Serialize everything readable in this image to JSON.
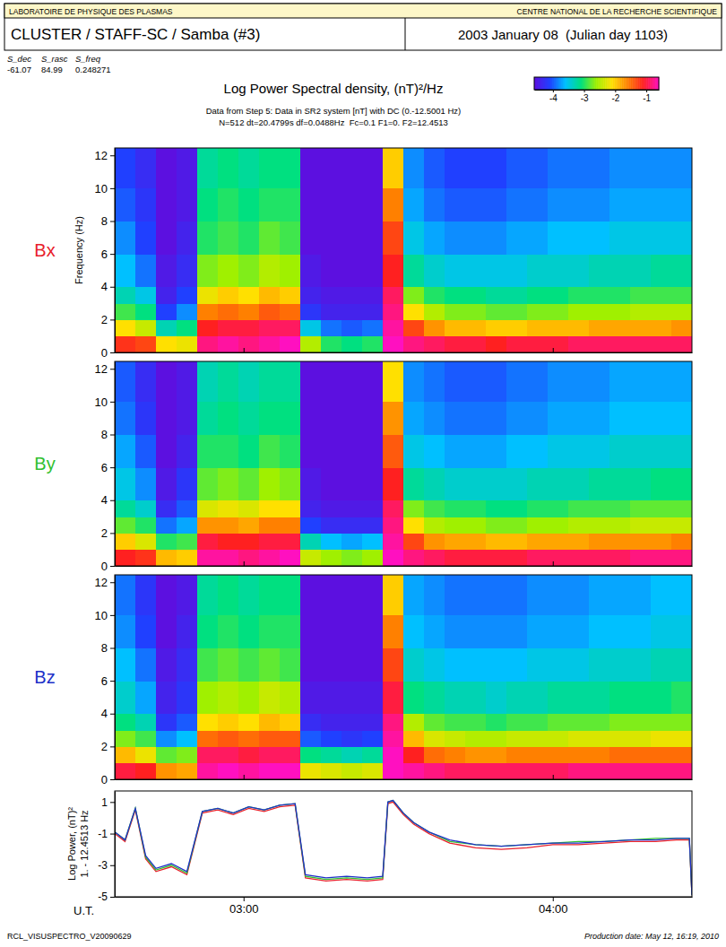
{
  "header": {
    "lab": "LABORATOIRE DE PHYSIQUE DES PLASMAS",
    "org": "CENTRE NATIONAL DE LA RECHERCHE SCIENTIFIQUE",
    "mission": "CLUSTER / STAFF-SC / Samba (#3)",
    "date": "2003 January 08  (Julian day 1103)",
    "params_names": [
      "S_dec",
      "S_rasc",
      "S_freq"
    ],
    "params_values": [
      -61.07,
      84.99,
      0.248271
    ],
    "title": "Log Power Spectral density, (nT)²/Hz",
    "subtitle": [
      "Data from Step 5: Data in SR2 system [nT] with DC (0.-12.5001 Hz)",
      "N=512 dt=20.4799s df=0.0488Hz  Fc=0.1 F1=0. F2=12.4513"
    ],
    "colorbar": {
      "range": [
        -4.6,
        -0.6
      ],
      "ticks": [
        -4,
        -3,
        -2,
        -1
      ]
    },
    "footer_left": "RCL_VISUSPECTRO_V20090629",
    "footer_right": "Production date: May 12, 16:19, 2010"
  },
  "chart_data": [
    {
      "type": "heatmap",
      "label": "Bx",
      "color": "#e8202a",
      "ylabel": "Frequency (Hz)",
      "xlim": [
        155,
        267
      ],
      "ylim": [
        0,
        12.4513
      ],
      "xticks": [
        180,
        240
      ],
      "yticks": [
        0,
        2,
        4,
        6,
        8,
        10,
        12
      ],
      "tick_labels": "y",
      "x_edges": [
        155,
        159,
        163,
        167,
        171,
        175,
        179,
        183,
        187,
        191,
        195,
        199,
        203,
        207,
        211,
        215,
        219,
        223,
        227,
        231,
        235,
        239,
        243,
        247,
        251,
        255,
        259,
        263,
        267
      ],
      "y_edges": [
        0,
        1,
        2,
        3,
        4,
        6,
        8,
        10,
        12.4513
      ],
      "cells": [
        [
          -1.2,
          -2.1,
          -2.9,
          -3.3,
          -3.6,
          -3.8,
          -4.0,
          -4.1
        ],
        [
          -1.3,
          -2.4,
          -3.1,
          -3.5,
          -3.9,
          -4.1,
          -4.2,
          -4.3
        ],
        [
          -2.1,
          -3.3,
          -4.1,
          -4.4,
          -4.5,
          -4.6,
          -4.6,
          -4.6
        ],
        [
          -2.2,
          -3.1,
          -3.8,
          -4.1,
          -4.3,
          -4.4,
          -4.5,
          -4.5
        ],
        [
          -0.8,
          -1.1,
          -1.6,
          -2.2,
          -2.7,
          -3.0,
          -3.1,
          -3.2
        ],
        [
          -0.7,
          -1.0,
          -1.5,
          -2.0,
          -2.6,
          -2.9,
          -3.0,
          -3.1
        ],
        [
          -0.8,
          -1.0,
          -1.6,
          -2.1,
          -2.7,
          -3.0,
          -3.1,
          -3.2
        ],
        [
          -0.7,
          -0.9,
          -1.4,
          -1.9,
          -2.5,
          -2.8,
          -3.0,
          -3.1
        ],
        [
          -0.6,
          -0.9,
          -1.5,
          -2.0,
          -2.6,
          -2.9,
          -3.0,
          -3.1
        ],
        [
          -2.5,
          -3.5,
          -4.2,
          -4.4,
          -4.5,
          -4.6,
          -4.6,
          -4.6
        ],
        [
          -3.0,
          -3.9,
          -4.4,
          -4.5,
          -4.6,
          -4.6,
          -4.6,
          -4.6
        ],
        [
          -3.1,
          -4.0,
          -4.4,
          -4.5,
          -4.6,
          -4.6,
          -4.6,
          -4.6
        ],
        [
          -3.0,
          -3.9,
          -4.4,
          -4.5,
          -4.6,
          -4.6,
          -4.6,
          -4.6
        ],
        [
          -0.6,
          -0.7,
          -0.8,
          -0.9,
          -1.1,
          -1.3,
          -1.6,
          -2.0
        ],
        [
          -0.8,
          -1.3,
          -2.1,
          -2.7,
          -3.2,
          -3.5,
          -3.7,
          -3.8
        ],
        [
          -0.9,
          -1.7,
          -2.5,
          -3.0,
          -3.4,
          -3.7,
          -3.9,
          -4.0
        ],
        [
          -1.0,
          -1.9,
          -2.7,
          -3.1,
          -3.5,
          -3.8,
          -4.0,
          -4.1
        ],
        [
          -1.0,
          -1.9,
          -2.7,
          -3.1,
          -3.5,
          -3.8,
          -4.0,
          -4.1
        ],
        [
          -1.1,
          -2.0,
          -2.8,
          -3.2,
          -3.5,
          -3.8,
          -4.0,
          -4.1
        ],
        [
          -1.0,
          -2.0,
          -2.8,
          -3.2,
          -3.5,
          -3.7,
          -3.9,
          -4.0
        ],
        [
          -1.0,
          -1.9,
          -2.7,
          -3.1,
          -3.4,
          -3.7,
          -3.9,
          -4.0
        ],
        [
          -1.0,
          -1.9,
          -2.7,
          -3.1,
          -3.4,
          -3.6,
          -3.8,
          -3.9
        ],
        [
          -0.9,
          -1.9,
          -2.6,
          -3.0,
          -3.4,
          -3.6,
          -3.8,
          -3.9
        ],
        [
          -0.9,
          -1.8,
          -2.6,
          -3.0,
          -3.3,
          -3.6,
          -3.8,
          -3.9
        ],
        [
          -0.9,
          -1.8,
          -2.6,
          -3.0,
          -3.3,
          -3.5,
          -3.7,
          -3.8
        ],
        [
          -0.9,
          -1.8,
          -2.5,
          -2.9,
          -3.3,
          -3.5,
          -3.7,
          -3.8
        ],
        [
          -0.9,
          -1.8,
          -2.5,
          -2.9,
          -3.2,
          -3.5,
          -3.7,
          -3.8
        ],
        [
          -0.9,
          -1.7,
          -2.5,
          -2.9,
          -3.2,
          -3.5,
          -3.7,
          -3.8
        ]
      ]
    },
    {
      "type": "heatmap",
      "label": "By",
      "color": "#30c030",
      "xlim": [
        155,
        267
      ],
      "ylim": [
        0,
        12.4513
      ],
      "xticks": [
        180,
        240
      ],
      "yticks": [
        0,
        2,
        4,
        6,
        8,
        10,
        12
      ],
      "tick_labels": "y",
      "x_edges": [
        155,
        159,
        163,
        167,
        171,
        175,
        179,
        183,
        187,
        191,
        195,
        199,
        203,
        207,
        211,
        215,
        219,
        223,
        227,
        231,
        235,
        239,
        243,
        247,
        251,
        255,
        259,
        263,
        267
      ],
      "y_edges": [
        0,
        1,
        2,
        3,
        4,
        6,
        8,
        10,
        12.4513
      ],
      "cells": [
        [
          -1.1,
          -2.0,
          -2.8,
          -3.2,
          -3.5,
          -3.7,
          -3.9,
          -4.0
        ],
        [
          -1.2,
          -2.3,
          -3.0,
          -3.4,
          -3.8,
          -4.0,
          -4.2,
          -4.3
        ],
        [
          -1.9,
          -3.0,
          -3.9,
          -4.3,
          -4.5,
          -4.6,
          -4.6,
          -4.6
        ],
        [
          -2.0,
          -2.9,
          -3.7,
          -4.0,
          -4.2,
          -4.4,
          -4.5,
          -4.5
        ],
        [
          -0.7,
          -1.0,
          -1.7,
          -2.3,
          -2.8,
          -3.0,
          -3.2,
          -3.3
        ],
        [
          -0.7,
          -1.1,
          -1.7,
          -2.2,
          -2.7,
          -3.0,
          -3.1,
          -3.2
        ],
        [
          -0.8,
          -1.1,
          -1.8,
          -2.3,
          -2.8,
          -3.1,
          -3.2,
          -3.3
        ],
        [
          -0.7,
          -1.0,
          -1.6,
          -2.1,
          -2.6,
          -2.9,
          -3.1,
          -3.2
        ],
        [
          -0.6,
          -1.0,
          -1.6,
          -2.1,
          -2.7,
          -3.0,
          -3.1,
          -3.2
        ],
        [
          -2.4,
          -3.3,
          -4.1,
          -4.4,
          -4.5,
          -4.6,
          -4.6,
          -4.6
        ],
        [
          -2.6,
          -3.6,
          -4.3,
          -4.5,
          -4.6,
          -4.6,
          -4.6,
          -4.6
        ],
        [
          -2.7,
          -3.7,
          -4.3,
          -4.5,
          -4.6,
          -4.6,
          -4.6,
          -4.6
        ],
        [
          -2.6,
          -3.6,
          -4.3,
          -4.5,
          -4.6,
          -4.6,
          -4.6,
          -4.6
        ],
        [
          -0.6,
          -0.7,
          -0.8,
          -0.9,
          -1.1,
          -1.4,
          -1.7,
          -2.1
        ],
        [
          -0.8,
          -1.3,
          -2.1,
          -2.7,
          -3.2,
          -3.5,
          -3.7,
          -3.8
        ],
        [
          -0.9,
          -1.7,
          -2.5,
          -2.9,
          -3.3,
          -3.6,
          -3.8,
          -3.9
        ],
        [
          -1.0,
          -1.8,
          -2.6,
          -3.0,
          -3.4,
          -3.7,
          -3.9,
          -4.0
        ],
        [
          -1.0,
          -1.8,
          -2.6,
          -3.0,
          -3.4,
          -3.7,
          -3.9,
          -4.0
        ],
        [
          -1.0,
          -1.9,
          -2.7,
          -3.1,
          -3.4,
          -3.7,
          -3.9,
          -4.0
        ],
        [
          -1.0,
          -1.9,
          -2.7,
          -3.1,
          -3.4,
          -3.6,
          -3.8,
          -3.9
        ],
        [
          -0.9,
          -1.8,
          -2.6,
          -3.0,
          -3.3,
          -3.6,
          -3.8,
          -3.9
        ],
        [
          -0.9,
          -1.8,
          -2.6,
          -3.0,
          -3.3,
          -3.5,
          -3.7,
          -3.8
        ],
        [
          -0.9,
          -1.8,
          -2.5,
          -2.9,
          -3.3,
          -3.5,
          -3.7,
          -3.8
        ],
        [
          -0.9,
          -1.7,
          -2.5,
          -2.9,
          -3.2,
          -3.5,
          -3.7,
          -3.8
        ],
        [
          -0.9,
          -1.7,
          -2.5,
          -2.9,
          -3.2,
          -3.4,
          -3.6,
          -3.7
        ],
        [
          -0.8,
          -1.7,
          -2.4,
          -2.8,
          -3.2,
          -3.4,
          -3.6,
          -3.7
        ],
        [
          -0.8,
          -1.7,
          -2.4,
          -2.8,
          -3.1,
          -3.4,
          -3.6,
          -3.7
        ],
        [
          -0.8,
          -1.6,
          -2.4,
          -2.8,
          -3.1,
          -3.4,
          -3.6,
          -3.7
        ]
      ]
    },
    {
      "type": "heatmap",
      "label": "Bz",
      "color": "#2030c8",
      "xlim": [
        155,
        267
      ],
      "ylim": [
        0,
        12.4513
      ],
      "xticks": [
        180,
        240
      ],
      "yticks": [
        0,
        2,
        4,
        6,
        8,
        10,
        12
      ],
      "tick_labels": "y",
      "x_edges": [
        155,
        159,
        163,
        167,
        171,
        175,
        179,
        183,
        187,
        191,
        195,
        199,
        203,
        207,
        211,
        215,
        219,
        223,
        227,
        231,
        235,
        239,
        243,
        247,
        251,
        255,
        259,
        263,
        267
      ],
      "y_edges": [
        0,
        1,
        2,
        3,
        4,
        6,
        8,
        10,
        12.4513
      ],
      "cells": [
        [
          -1.0,
          -1.9,
          -2.7,
          -3.1,
          -3.4,
          -3.6,
          -3.8,
          -3.9
        ],
        [
          -1.1,
          -2.2,
          -2.9,
          -3.3,
          -3.7,
          -3.9,
          -4.1,
          -4.2
        ],
        [
          -1.7,
          -2.8,
          -3.8,
          -4.2,
          -4.4,
          -4.5,
          -4.6,
          -4.6
        ],
        [
          -1.8,
          -2.7,
          -3.6,
          -4.0,
          -4.2,
          -4.3,
          -4.4,
          -4.5
        ],
        [
          -0.7,
          -0.9,
          -1.5,
          -2.1,
          -2.6,
          -2.9,
          -3.1,
          -3.2
        ],
        [
          -0.6,
          -0.9,
          -1.4,
          -2.0,
          -2.5,
          -2.8,
          -3.0,
          -3.1
        ],
        [
          -0.7,
          -1.0,
          -1.5,
          -2.1,
          -2.6,
          -2.9,
          -3.1,
          -3.2
        ],
        [
          -0.6,
          -0.9,
          -1.4,
          -1.9,
          -2.4,
          -2.8,
          -3.0,
          -3.1
        ],
        [
          -0.6,
          -0.9,
          -1.4,
          -2.0,
          -2.5,
          -2.9,
          -3.0,
          -3.1
        ],
        [
          -2.2,
          -3.1,
          -4.0,
          -4.3,
          -4.5,
          -4.6,
          -4.6,
          -4.6
        ],
        [
          -2.3,
          -3.2,
          -4.1,
          -4.4,
          -4.5,
          -4.6,
          -4.6,
          -4.6
        ],
        [
          -2.4,
          -3.3,
          -4.2,
          -4.4,
          -4.5,
          -4.6,
          -4.6,
          -4.6
        ],
        [
          -2.3,
          -3.2,
          -4.1,
          -4.4,
          -4.5,
          -4.6,
          -4.6,
          -4.6
        ],
        [
          -0.6,
          -0.6,
          -0.7,
          -0.8,
          -1.0,
          -1.3,
          -1.6,
          -2.0
        ],
        [
          -0.7,
          -1.1,
          -1.9,
          -2.5,
          -3.1,
          -3.4,
          -3.6,
          -3.7
        ],
        [
          -0.8,
          -1.5,
          -2.3,
          -2.8,
          -3.2,
          -3.5,
          -3.7,
          -3.8
        ],
        [
          -0.9,
          -1.6,
          -2.4,
          -2.9,
          -3.3,
          -3.6,
          -3.8,
          -3.9
        ],
        [
          -0.9,
          -1.7,
          -2.5,
          -2.9,
          -3.3,
          -3.6,
          -3.8,
          -3.9
        ],
        [
          -0.9,
          -1.7,
          -2.5,
          -3.0,
          -3.4,
          -3.6,
          -3.8,
          -3.9
        ],
        [
          -0.9,
          -1.6,
          -2.4,
          -2.9,
          -3.3,
          -3.6,
          -3.8,
          -3.9
        ],
        [
          -0.9,
          -1.6,
          -2.4,
          -2.9,
          -3.3,
          -3.5,
          -3.7,
          -3.8
        ],
        [
          -0.9,
          -1.6,
          -2.4,
          -2.8,
          -3.2,
          -3.5,
          -3.7,
          -3.8
        ],
        [
          -0.8,
          -1.6,
          -2.3,
          -2.8,
          -3.2,
          -3.5,
          -3.7,
          -3.8
        ],
        [
          -0.8,
          -1.6,
          -2.3,
          -2.8,
          -3.2,
          -3.4,
          -3.6,
          -3.7
        ],
        [
          -0.8,
          -1.5,
          -2.3,
          -2.7,
          -3.1,
          -3.4,
          -3.6,
          -3.7
        ],
        [
          -0.8,
          -1.5,
          -2.3,
          -2.7,
          -3.1,
          -3.4,
          -3.6,
          -3.7
        ],
        [
          -0.8,
          -1.5,
          -2.2,
          -2.7,
          -3.1,
          -3.3,
          -3.5,
          -3.6
        ],
        [
          -0.8,
          -1.5,
          -2.2,
          -2.7,
          -3.0,
          -3.3,
          -3.5,
          -3.6
        ]
      ]
    },
    {
      "type": "line",
      "xlabel": "U.T.",
      "ylabel": [
        "Log Power, (nT)²",
        "1. - 12.4513 Hz"
      ],
      "xlim": [
        155,
        267
      ],
      "ylim": [
        -5,
        1.7
      ],
      "xticks": [
        {
          "value": 180,
          "label": "03:00"
        },
        {
          "value": 240,
          "label": "04:00"
        }
      ],
      "yticks": [
        -5,
        -3,
        -1,
        1
      ],
      "x": [
        155,
        157,
        159,
        161,
        163,
        166,
        169,
        172,
        175,
        178,
        181,
        184,
        187,
        190,
        192,
        196,
        200,
        204,
        207,
        208,
        209,
        211,
        213,
        216,
        220,
        225,
        230,
        235,
        240,
        245,
        250,
        255,
        260,
        264,
        266.5,
        267
      ],
      "series": [
        {
          "color": "#e8202a",
          "values": [
            -1.0,
            -1.5,
            0.5,
            -2.6,
            -3.4,
            -3.1,
            -3.6,
            0.3,
            0.5,
            0.2,
            0.6,
            0.4,
            0.7,
            0.8,
            -3.8,
            -4.0,
            -3.9,
            -4.0,
            -3.9,
            0.9,
            1.0,
            0.2,
            -0.4,
            -1.0,
            -1.6,
            -1.9,
            -2.0,
            -1.9,
            -1.7,
            -1.7,
            -1.6,
            -1.5,
            -1.5,
            -1.4,
            -1.4,
            -4.9
          ]
        },
        {
          "color": "#30c030",
          "values": [
            -0.9,
            -1.4,
            0.6,
            -2.5,
            -3.3,
            -3.0,
            -3.5,
            0.4,
            0.6,
            0.3,
            0.7,
            0.5,
            0.8,
            0.9,
            -3.7,
            -3.9,
            -3.8,
            -3.9,
            -3.8,
            1.0,
            1.1,
            0.3,
            -0.3,
            -0.9,
            -1.5,
            -1.7,
            -1.8,
            -1.7,
            -1.6,
            -1.5,
            -1.5,
            -1.4,
            -1.3,
            -1.3,
            -1.3,
            -4.9
          ]
        },
        {
          "color": "#2030c8",
          "values": [
            -0.9,
            -1.4,
            0.6,
            -2.4,
            -3.2,
            -2.9,
            -3.4,
            0.4,
            0.6,
            0.3,
            0.7,
            0.5,
            0.8,
            0.9,
            -3.6,
            -3.8,
            -3.7,
            -3.8,
            -3.7,
            1.0,
            1.1,
            0.3,
            -0.3,
            -0.9,
            -1.4,
            -1.7,
            -1.8,
            -1.7,
            -1.6,
            -1.6,
            -1.5,
            -1.4,
            -1.4,
            -1.3,
            -1.3,
            -4.9
          ]
        }
      ]
    }
  ]
}
